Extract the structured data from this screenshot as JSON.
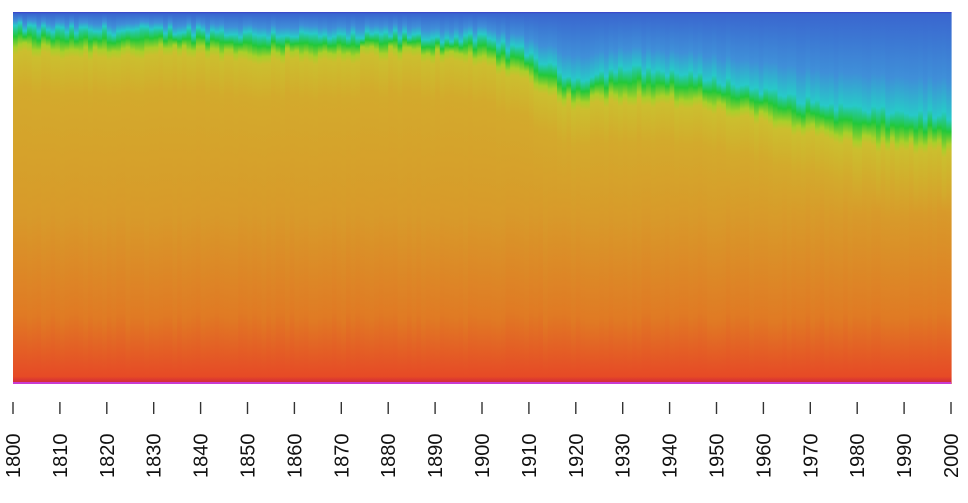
{
  "chart_data": {
    "type": "heatmap",
    "title": "",
    "xlabel": "",
    "ylabel": "",
    "x_range": [
      1800,
      2000
    ],
    "x_ticks": [
      1800,
      1810,
      1820,
      1830,
      1840,
      1850,
      1860,
      1870,
      1880,
      1890,
      1900,
      1910,
      1920,
      1930,
      1940,
      1950,
      1960,
      1970,
      1980,
      1990,
      2000
    ],
    "x_tick_labels": [
      "1800",
      "1810",
      "1820",
      "1830",
      "1840",
      "1850",
      "1860",
      "1870",
      "1880",
      "1890",
      "1900",
      "1910",
      "1920",
      "1930",
      "1940",
      "1950",
      "1960",
      "1970",
      "1980",
      "1990",
      "2000"
    ],
    "y_axis_shown": false,
    "grid": false,
    "legend": "none",
    "colormap": [
      "#cc2040",
      "#e64a26",
      "#e07a24",
      "#d89a2a",
      "#d3aa2c",
      "#cbbf2e",
      "#a8d02a",
      "#22c83a",
      "#27c9c8",
      "#3f8fd8",
      "#3a66cf",
      "#3b3fc8"
    ],
    "boundary_series": [
      {
        "name": "blue-green",
        "x": [
          1800,
          1810,
          1820,
          1830,
          1840,
          1850,
          1860,
          1870,
          1880,
          1890,
          1900,
          1910,
          1915,
          1920,
          1930,
          1940,
          1950,
          1960,
          1970,
          1980,
          1990,
          2000
        ],
        "values": [
          0.96,
          0.95,
          0.95,
          0.95,
          0.95,
          0.94,
          0.94,
          0.93,
          0.94,
          0.93,
          0.93,
          0.89,
          0.85,
          0.82,
          0.85,
          0.84,
          0.82,
          0.79,
          0.76,
          0.74,
          0.73,
          0.72
        ]
      },
      {
        "name": "green-yellow",
        "x": [
          1800,
          1810,
          1820,
          1830,
          1840,
          1850,
          1860,
          1870,
          1880,
          1890,
          1900,
          1910,
          1915,
          1920,
          1930,
          1940,
          1950,
          1960,
          1970,
          1980,
          1990,
          2000
        ],
        "values": [
          0.91,
          0.9,
          0.9,
          0.9,
          0.9,
          0.89,
          0.89,
          0.89,
          0.9,
          0.89,
          0.88,
          0.83,
          0.79,
          0.76,
          0.78,
          0.77,
          0.75,
          0.72,
          0.69,
          0.66,
          0.65,
          0.64
        ]
      }
    ]
  }
}
